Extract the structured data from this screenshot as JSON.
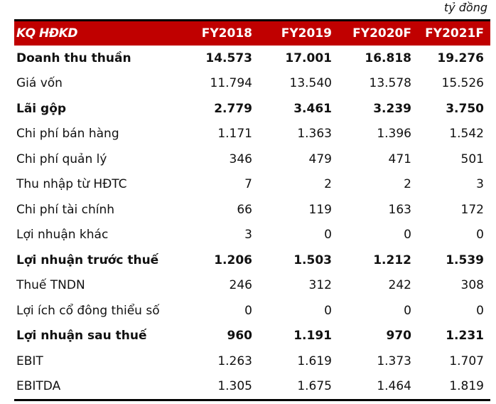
{
  "unit_label": "tỷ đồng",
  "table": {
    "header": {
      "label": "KQ HĐKD",
      "columns": [
        "FY2018",
        "FY2019",
        "FY2020F",
        "FY2021F"
      ]
    },
    "rows": [
      {
        "label": "Doanh thu thuần",
        "bold": true,
        "values": [
          "14.573",
          "17.001",
          "16.818",
          "19.276"
        ]
      },
      {
        "label": "Giá vốn",
        "bold": false,
        "values": [
          "11.794",
          "13.540",
          "13.578",
          "15.526"
        ]
      },
      {
        "label": "Lãi gộp",
        "bold": true,
        "values": [
          "2.779",
          "3.461",
          "3.239",
          "3.750"
        ]
      },
      {
        "label": "Chi phí bán hàng",
        "bold": false,
        "values": [
          "1.171",
          "1.363",
          "1.396",
          "1.542"
        ]
      },
      {
        "label": "Chi phí quản lý",
        "bold": false,
        "values": [
          "346",
          "479",
          "471",
          "501"
        ]
      },
      {
        "label": "Thu nhập từ HĐTC",
        "bold": false,
        "values": [
          "7",
          "2",
          "2",
          "3"
        ]
      },
      {
        "label": "Chi phí tài chính",
        "bold": false,
        "values": [
          "66",
          "119",
          "163",
          "172"
        ]
      },
      {
        "label": "Lợi nhuận khác",
        "bold": false,
        "values": [
          "3",
          "0",
          "0",
          "0"
        ]
      },
      {
        "label": "Lợi nhuận trước thuế",
        "bold": true,
        "values": [
          "1.206",
          "1.503",
          "1.212",
          "1.539"
        ]
      },
      {
        "label": "Thuế TNDN",
        "bold": false,
        "values": [
          "246",
          "312",
          "242",
          "308"
        ]
      },
      {
        "label": "Lợi ích cổ đông thiểu số",
        "bold": false,
        "values": [
          "0",
          "0",
          "0",
          "0"
        ]
      },
      {
        "label": "Lợi nhuận sau thuế",
        "bold": true,
        "values": [
          "960",
          "1.191",
          "970",
          "1.231"
        ]
      },
      {
        "label": "EBIT",
        "bold": false,
        "values": [
          "1.263",
          "1.619",
          "1.373",
          "1.707"
        ]
      },
      {
        "label": "EBITDA",
        "bold": false,
        "values": [
          "1.305",
          "1.675",
          "1.464",
          "1.819"
        ]
      }
    ]
  },
  "colors": {
    "header_bg": "#c00000",
    "header_text": "#ffffff",
    "rule": "#000000"
  }
}
